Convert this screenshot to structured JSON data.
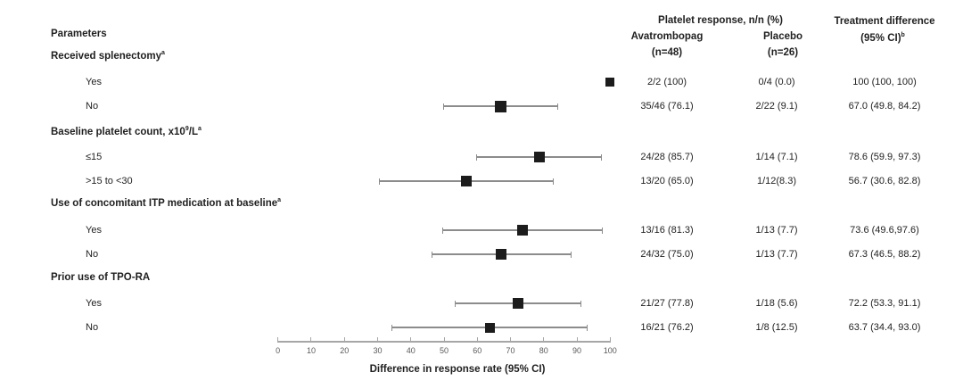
{
  "colors": {
    "text": "#1f1f1f",
    "marker": "#1c1c1c",
    "ci_line": "#8c8c8c",
    "axis_line": "#a6a6a6",
    "tick_label": "#595959"
  },
  "header": {
    "parameters": "Parameters",
    "response_group": "Platelet response, n/n (%)",
    "col_ava": "Avatrombopag",
    "col_ava_n": "(n=48)",
    "col_placebo": "Placebo",
    "col_placebo_n": "(n=26)",
    "col_diff_line1": "Treatment difference",
    "col_diff_line2": "(95% CI)",
    "col_diff_sup": "b"
  },
  "chart_data": {
    "type": "scatter",
    "subtype": "forest-plot",
    "title": "",
    "xlabel": "Difference in response rate (95% CI)",
    "xlim": [
      0,
      100
    ],
    "xticks": [
      0,
      10,
      20,
      30,
      40,
      50,
      60,
      70,
      80,
      90,
      100
    ],
    "grid": false,
    "legend": false,
    "groups": [
      {
        "label": "Received splenectomy",
        "footnote_sup": "a",
        "rows": [
          {
            "label": "Yes",
            "estimate": 100,
            "ci_low": 100,
            "ci_high": 100,
            "marker_size": 10,
            "avatrombopag": "2/2 (100)",
            "placebo": "0/4 (0.0)",
            "difference": "100 (100, 100)"
          },
          {
            "label": "No",
            "estimate": 67.0,
            "ci_low": 49.8,
            "ci_high": 84.2,
            "marker_size": 13,
            "avatrombopag": "35/46 (76.1)",
            "placebo": "2/22 (9.1)",
            "difference": "67.0 (49.8, 84.2)"
          }
        ]
      },
      {
        "label": "Baseline platelet count, x10^{9}/L",
        "footnote_sup": "a",
        "rows": [
          {
            "label": "≤15",
            "estimate": 78.6,
            "ci_low": 59.9,
            "ci_high": 97.3,
            "marker_size": 12,
            "avatrombopag": "24/28 (85.7)",
            "placebo": "1/14 (7.1)",
            "difference": "78.6 (59.9, 97.3)"
          },
          {
            "label": ">15 to <30",
            "estimate": 56.7,
            "ci_low": 30.6,
            "ci_high": 82.8,
            "marker_size": 12,
            "avatrombopag": "13/20 (65.0)",
            "placebo": "1/12(8.3)",
            "difference": "56.7 (30.6, 82.8)"
          }
        ]
      },
      {
        "label": "Use of concomitant ITP medication at baseline",
        "footnote_sup": "a",
        "rows": [
          {
            "label": "Yes",
            "estimate": 73.6,
            "ci_low": 49.6,
            "ci_high": 97.6,
            "marker_size": 12,
            "avatrombopag": "13/16 (81.3)",
            "placebo": "1/13 (7.7)",
            "difference": "73.6 (49.6,97.6)"
          },
          {
            "label": "No",
            "estimate": 67.3,
            "ci_low": 46.5,
            "ci_high": 88.2,
            "marker_size": 12,
            "avatrombopag": "24/32 (75.0)",
            "placebo": "1/13 (7.7)",
            "difference": "67.3 (46.5, 88.2)"
          }
        ]
      },
      {
        "label": "Prior use of TPO-RA",
        "footnote_sup": "",
        "rows": [
          {
            "label": "Yes",
            "estimate": 72.2,
            "ci_low": 53.3,
            "ci_high": 91.1,
            "marker_size": 12,
            "avatrombopag": "21/27 (77.8)",
            "placebo": "1/18 (5.6)",
            "difference": "72.2 (53.3, 91.1)"
          },
          {
            "label": "No",
            "estimate": 63.7,
            "ci_low": 34.4,
            "ci_high": 93.0,
            "marker_size": 11,
            "avatrombopag": "16/21 (76.2)",
            "placebo": "1/8 (12.5)",
            "difference": "63.7 (34.4, 93.0)"
          }
        ]
      }
    ]
  }
}
